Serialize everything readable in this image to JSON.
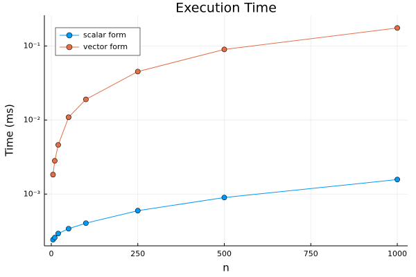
{
  "chart_data": {
    "type": "line",
    "title": "Execution Time",
    "x_label": "n",
    "y_label": "Time (ms)",
    "x": [
      5,
      10,
      20,
      50,
      100,
      250,
      500,
      1000
    ],
    "series": [
      {
        "name": "scalar form",
        "color": "#009af9",
        "values": [
          0.000242,
          0.000258,
          0.000293,
          0.000341,
          0.000405,
          0.000597,
          0.000898,
          0.00157
        ]
      },
      {
        "name": "vector form",
        "color": "#e26f46",
        "values": [
          0.00183,
          0.00281,
          0.00461,
          0.0109,
          0.019,
          0.0451,
          0.0898,
          0.175
        ]
      }
    ],
    "xlim": [
      -20,
      1030
    ],
    "xticks": [
      0,
      250,
      500,
      750,
      1000
    ],
    "ylim": [
      0.0002,
      0.26
    ],
    "y_scale": "log",
    "yticks": [
      {
        "value": 0.001,
        "label": "10⁻³"
      },
      {
        "value": 0.01,
        "label": "10⁻²"
      },
      {
        "value": 0.1,
        "label": "10⁻¹"
      }
    ],
    "grid": true,
    "legend_position": "top-left"
  }
}
